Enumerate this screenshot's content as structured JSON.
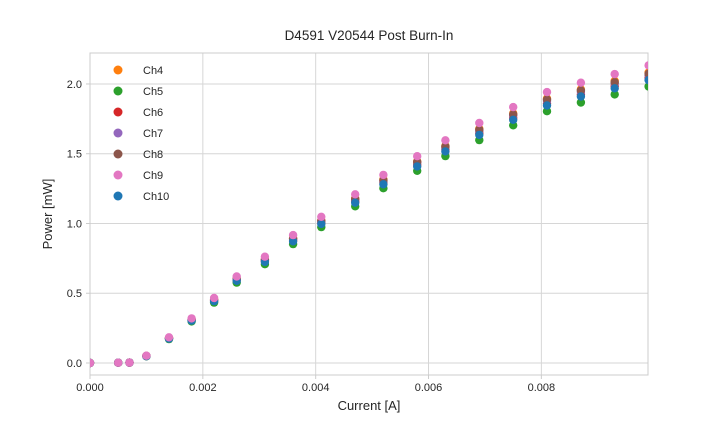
{
  "chart_data": {
    "type": "scatter",
    "title": "D4591 V20544 Post Burn-In",
    "xlabel": "Current [A]",
    "ylabel": "Power [mW]",
    "xlim": [
      0.0,
      0.00989
    ],
    "ylim": [
      -0.086,
      2.222
    ],
    "grid": true,
    "legend_position": "upper left",
    "x_ticks": {
      "values": [
        0.0,
        0.002,
        0.004,
        0.006,
        0.008
      ],
      "labels": [
        "0.000",
        "0.002",
        "0.004",
        "0.006",
        "0.008"
      ]
    },
    "y_ticks": {
      "values": [
        0.0,
        0.5,
        1.0,
        1.5,
        2.0
      ],
      "labels": [
        "0.0",
        "0.5",
        "1.0",
        "1.5",
        "2.0"
      ]
    },
    "x": [
      0.0,
      0.0005,
      0.0007,
      0.001,
      0.0014,
      0.0018,
      0.0022,
      0.0026,
      0.0031,
      0.0036,
      0.0041,
      0.0047,
      0.0052,
      0.0058,
      0.0063,
      0.0069,
      0.0075,
      0.0081,
      0.0087,
      0.0093,
      0.0099
    ],
    "series": [
      {
        "name": "Ch4",
        "color": "#ff7f0e",
        "values": [
          0.0,
          0.002,
          0.003,
          0.05,
          0.179,
          0.312,
          0.455,
          0.605,
          0.744,
          0.895,
          1.023,
          1.179,
          1.315,
          1.446,
          1.557,
          1.678,
          1.789,
          1.895,
          1.961,
          2.021,
          2.082
        ]
      },
      {
        "name": "Ch5",
        "color": "#2ca02c",
        "values": [
          0.0,
          0.002,
          0.003,
          0.048,
          0.171,
          0.298,
          0.433,
          0.576,
          0.708,
          0.852,
          0.974,
          1.123,
          1.253,
          1.378,
          1.483,
          1.598,
          1.704,
          1.805,
          1.867,
          1.925,
          1.982
        ]
      },
      {
        "name": "Ch6",
        "color": "#d62728",
        "values": [
          0.0,
          0.002,
          0.003,
          0.05,
          0.176,
          0.307,
          0.446,
          0.594,
          0.731,
          0.879,
          1.005,
          1.158,
          1.292,
          1.421,
          1.53,
          1.648,
          1.757,
          1.861,
          1.926,
          1.985,
          2.044
        ]
      },
      {
        "name": "Ch7",
        "color": "#9467bd",
        "values": [
          0.0,
          0.002,
          0.003,
          0.05,
          0.178,
          0.31,
          0.45,
          0.599,
          0.737,
          0.887,
          1.014,
          1.169,
          1.304,
          1.434,
          1.543,
          1.663,
          1.773,
          1.878,
          1.943,
          2.003,
          2.063
        ]
      },
      {
        "name": "Ch8",
        "color": "#8c564b",
        "values": [
          0.0,
          0.002,
          0.003,
          0.05,
          0.179,
          0.311,
          0.453,
          0.602,
          0.741,
          0.892,
          1.019,
          1.175,
          1.31,
          1.441,
          1.551,
          1.672,
          1.782,
          1.888,
          1.953,
          2.013,
          2.073
        ]
      },
      {
        "name": "Ch9",
        "color": "#e377c2",
        "values": [
          0.0,
          0.002,
          0.003,
          0.052,
          0.184,
          0.32,
          0.466,
          0.62,
          0.762,
          0.917,
          1.048,
          1.209,
          1.348,
          1.482,
          1.596,
          1.72,
          1.834,
          1.942,
          2.009,
          2.071,
          2.133
        ]
      },
      {
        "name": "Ch10",
        "color": "#1f77b4",
        "values": [
          0.0,
          0.002,
          0.003,
          0.049,
          0.175,
          0.304,
          0.443,
          0.589,
          0.725,
          0.872,
          0.997,
          1.149,
          1.281,
          1.409,
          1.517,
          1.635,
          1.743,
          1.846,
          1.91,
          1.969,
          2.028
        ]
      }
    ],
    "draw_order": [
      "Ch4",
      "Ch5",
      "Ch6",
      "Ch7",
      "Ch8",
      "Ch10",
      "Ch9"
    ],
    "marker": {
      "shape": "circle",
      "radius_px": 4.2
    }
  }
}
